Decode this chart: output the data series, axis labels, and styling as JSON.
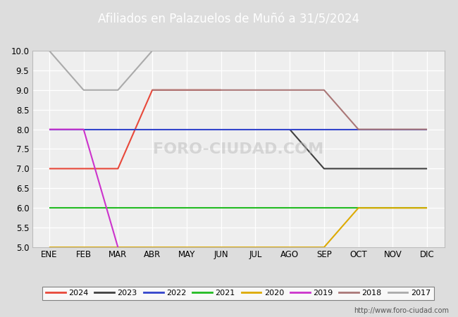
{
  "title": "Afiliados en Palazuelos de Muñó a 31/5/2024",
  "months": [
    "ENE",
    "FEB",
    "MAR",
    "ABR",
    "MAY",
    "JUN",
    "JUL",
    "AGO",
    "SEP",
    "OCT",
    "NOV",
    "DIC"
  ],
  "ylim": [
    5.0,
    10.0
  ],
  "yticks": [
    5.0,
    5.5,
    6.0,
    6.5,
    7.0,
    7.5,
    8.0,
    8.5,
    9.0,
    9.5,
    10.0
  ],
  "series": {
    "2024": {
      "color": "#e8483a",
      "data": [
        7,
        7,
        7,
        9,
        9,
        9,
        null,
        null,
        null,
        null,
        null,
        null
      ]
    },
    "2023": {
      "color": "#404040",
      "data": [
        null,
        null,
        null,
        null,
        null,
        null,
        null,
        8,
        7,
        7,
        7,
        7
      ]
    },
    "2022": {
      "color": "#3344cc",
      "data": [
        8,
        8,
        8,
        8,
        8,
        8,
        8,
        8,
        8,
        8,
        8,
        8
      ]
    },
    "2021": {
      "color": "#22bb22",
      "data": [
        6,
        6,
        6,
        6,
        6,
        6,
        6,
        6,
        6,
        6,
        6,
        6
      ]
    },
    "2020": {
      "color": "#ddaa00",
      "data": [
        5,
        5,
        5,
        5,
        5,
        5,
        5,
        5,
        5,
        6,
        6,
        6
      ]
    },
    "2019": {
      "color": "#cc33cc",
      "data": [
        8,
        8,
        5,
        null,
        null,
        null,
        null,
        null,
        null,
        null,
        null,
        null
      ]
    },
    "2018": {
      "color": "#aa7777",
      "data": [
        null,
        null,
        null,
        9,
        9,
        9,
        9,
        9,
        9,
        8,
        8,
        8
      ]
    },
    "2017": {
      "color": "#aaaaaa",
      "data": [
        10,
        9,
        9,
        10,
        10,
        null,
        null,
        null,
        null,
        null,
        null,
        null
      ]
    }
  },
  "url": "http://www.foro-ciudad.com",
  "plot_bg_color": "#eeeeee",
  "fig_bg_color": "#dddddd",
  "title_bg_color": "#5599cc",
  "title_text_color": "#ffffff",
  "legend_years": [
    "2024",
    "2023",
    "2022",
    "2021",
    "2020",
    "2019",
    "2018",
    "2017"
  ],
  "watermark": "FORO-CIUDAD.COM"
}
